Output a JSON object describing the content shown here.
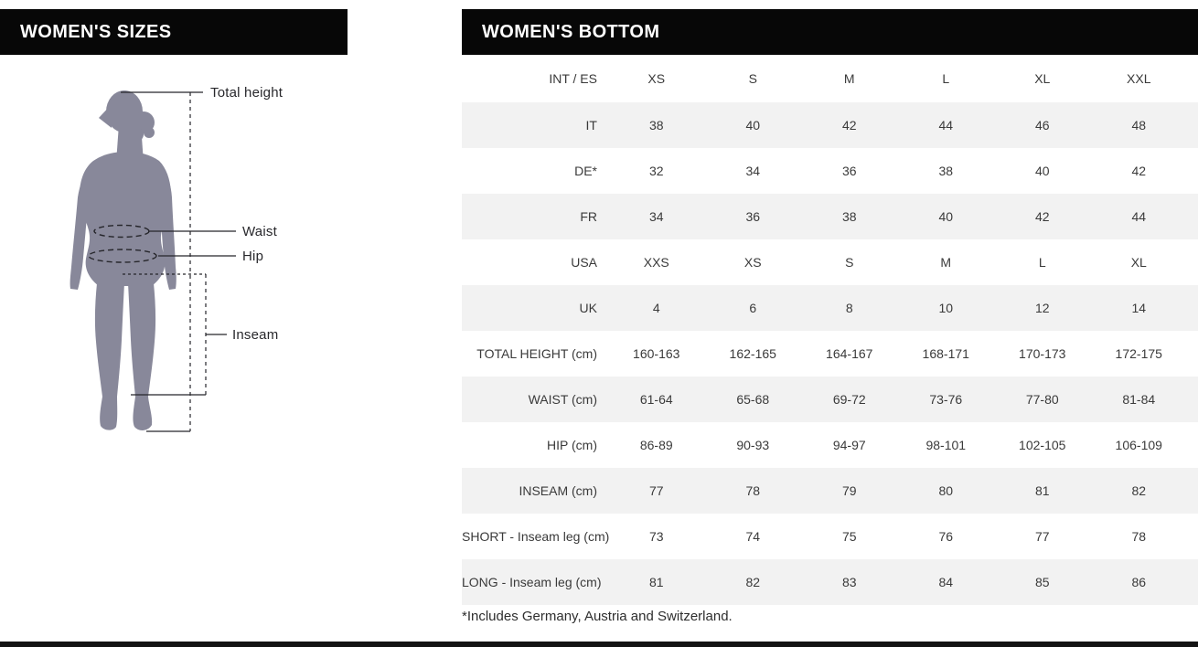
{
  "left_panel": {
    "title": "WOMEN'S SIZES",
    "diagram_labels": {
      "total_height": "Total height",
      "waist": "Waist",
      "hip": "Hip",
      "inseam": "Inseam"
    }
  },
  "right_panel": {
    "title": "WOMEN'S BOTTOM",
    "footnote": "*Includes Germany, Austria and Switzerland.",
    "table": {
      "corner_label": "INT / ES",
      "columns": [
        "XS",
        "S",
        "M",
        "L",
        "XL",
        "XXL"
      ],
      "rows": [
        {
          "label": "IT",
          "values": [
            "38",
            "40",
            "42",
            "44",
            "46",
            "48"
          ]
        },
        {
          "label": "DE*",
          "values": [
            "32",
            "34",
            "36",
            "38",
            "40",
            "42"
          ]
        },
        {
          "label": "FR",
          "values": [
            "34",
            "36",
            "38",
            "40",
            "42",
            "44"
          ]
        },
        {
          "label": "USA",
          "values": [
            "XXS",
            "XS",
            "S",
            "M",
            "L",
            "XL"
          ]
        },
        {
          "label": "UK",
          "values": [
            "4",
            "6",
            "8",
            "10",
            "12",
            "14"
          ]
        },
        {
          "label": "TOTAL HEIGHT (cm)",
          "values": [
            "160-163",
            "162-165",
            "164-167",
            "168-171",
            "170-173",
            "172-175"
          ]
        },
        {
          "label": "WAIST (cm)",
          "values": [
            "61-64",
            "65-68",
            "69-72",
            "73-76",
            "77-80",
            "81-84"
          ]
        },
        {
          "label": "HIP (cm)",
          "values": [
            "86-89",
            "90-93",
            "94-97",
            "98-101",
            "102-105",
            "106-109"
          ]
        },
        {
          "label": "INSEAM (cm)",
          "values": [
            "77",
            "78",
            "79",
            "80",
            "81",
            "82"
          ]
        },
        {
          "label": "SHORT - Inseam leg (cm)",
          "values": [
            "73",
            "74",
            "75",
            "76",
            "77",
            "78"
          ]
        },
        {
          "label": "LONG - Inseam leg (cm)",
          "values": [
            "81",
            "82",
            "83",
            "84",
            "85",
            "86"
          ]
        }
      ]
    }
  },
  "chart_data": {
    "type": "table",
    "title": "WOMEN'S BOTTOM",
    "columns": [
      "INT / ES",
      "XS",
      "S",
      "M",
      "L",
      "XL",
      "XXL"
    ],
    "rows": [
      [
        "IT",
        "38",
        "40",
        "42",
        "44",
        "46",
        "48"
      ],
      [
        "DE*",
        "32",
        "34",
        "36",
        "38",
        "40",
        "42"
      ],
      [
        "FR",
        "34",
        "36",
        "38",
        "40",
        "42",
        "44"
      ],
      [
        "USA",
        "XXS",
        "XS",
        "S",
        "M",
        "L",
        "XL"
      ],
      [
        "UK",
        "4",
        "6",
        "8",
        "10",
        "12",
        "14"
      ],
      [
        "TOTAL HEIGHT (cm)",
        "160-163",
        "162-165",
        "164-167",
        "168-171",
        "170-173",
        "172-175"
      ],
      [
        "WAIST (cm)",
        "61-64",
        "65-68",
        "69-72",
        "73-76",
        "77-80",
        "81-84"
      ],
      [
        "HIP (cm)",
        "86-89",
        "90-93",
        "94-97",
        "98-101",
        "102-105",
        "106-109"
      ],
      [
        "INSEAM (cm)",
        "77",
        "78",
        "79",
        "80",
        "81",
        "82"
      ],
      [
        "SHORT - Inseam leg (cm)",
        "73",
        "74",
        "75",
        "76",
        "77",
        "78"
      ],
      [
        "LONG - Inseam leg (cm)",
        "81",
        "82",
        "83",
        "84",
        "85",
        "86"
      ]
    ],
    "footnote": "*Includes Germany, Austria and Switzerland."
  },
  "colors": {
    "header_bg": "#070707",
    "header_text": "#ffffff",
    "row_alt_bg": "#f2f2f2",
    "table_text": "#3a3a3a",
    "silhouette": "#88889a",
    "annotation_line": "#26262b"
  }
}
